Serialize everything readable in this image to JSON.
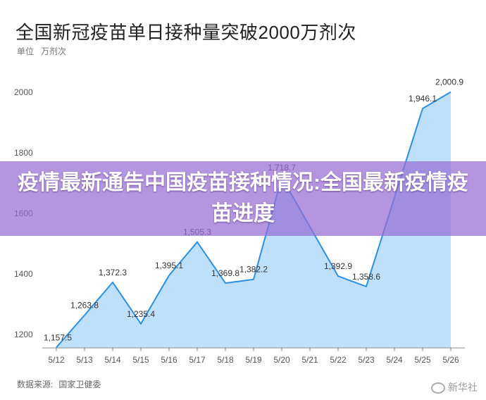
{
  "header": {
    "title": "全国新冠疫苗单日接种量突破2000万剂次",
    "unit_label": "单位",
    "unit_value": "万剂次"
  },
  "banner": {
    "text": "疫情最新通告中国疫苗接种情况:全国最新疫情疫苗进度"
  },
  "footer": {
    "source_label": "数据来源:",
    "source_value": "国家卫健委",
    "watermark": "新华社",
    "watermark_icon": "weibo-icon"
  },
  "chart_data": {
    "type": "area",
    "categories": [
      "5/12",
      "5/13",
      "5/14",
      "5/15",
      "5/16",
      "5/17",
      "5/18",
      "5/19",
      "5/20",
      "5/21",
      "5/22",
      "5/23",
      "5/24",
      "5/25",
      "5/26"
    ],
    "values": [
      1157.5,
      1263.8,
      1372.3,
      1235.4,
      1395.1,
      1505.3,
      1369.8,
      1382.2,
      1718.7,
      null,
      1392.9,
      1358.6,
      null,
      1946.1,
      2000.9
    ],
    "data_labels": [
      "1,157.5",
      "1,263.8",
      "1,372.3",
      "1,235.4",
      "1,395.1",
      "1,505.3",
      "1,369.8",
      "1,382.2",
      "1,718.7",
      "",
      "1,392.9",
      "1,358.6",
      "",
      "1,946.1",
      "2,000.9"
    ],
    "yticks": [
      1200,
      1400,
      1600,
      1800,
      2000
    ],
    "ylim": [
      1150,
      2070
    ],
    "grid": false,
    "colors": {
      "line": "#2d8fe0",
      "fill": "#bfe0fb"
    }
  }
}
